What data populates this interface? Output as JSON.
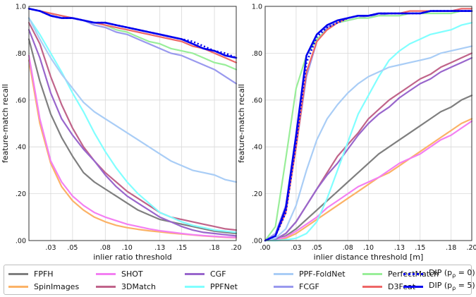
{
  "chart_data": [
    {
      "type": "line",
      "xlabel": "inlier ratio threshold",
      "ylabel": "feature-match recall",
      "xlim": [
        0.01,
        0.2
      ],
      "ylim": [
        0.0,
        1.0
      ],
      "xticks": [
        0.03,
        0.05,
        0.08,
        0.1,
        0.13,
        0.15,
        0.18,
        0.2
      ],
      "xtick_labels": [
        ".03",
        ".05",
        ".08",
        ".10",
        ".13",
        ".15",
        ".18",
        ".20"
      ],
      "yticks": [
        0.0,
        0.2,
        0.4,
        0.6,
        0.8,
        1.0
      ],
      "ytick_labels": [
        ".00",
        ".20",
        ".40",
        ".60",
        ".80",
        "1.0"
      ],
      "grid": true,
      "x": [
        0.01,
        0.02,
        0.03,
        0.04,
        0.05,
        0.06,
        0.07,
        0.08,
        0.09,
        0.1,
        0.11,
        0.12,
        0.13,
        0.14,
        0.15,
        0.16,
        0.17,
        0.18,
        0.19,
        0.2
      ],
      "series": [
        {
          "name": "FPFH",
          "values": [
            0.86,
            0.68,
            0.54,
            0.44,
            0.36,
            0.29,
            0.25,
            0.22,
            0.19,
            0.16,
            0.13,
            0.11,
            0.09,
            0.08,
            0.07,
            0.06,
            0.05,
            0.04,
            0.035,
            0.03
          ]
        },
        {
          "name": "SpinImages",
          "values": [
            0.77,
            0.5,
            0.33,
            0.23,
            0.17,
            0.13,
            0.1,
            0.08,
            0.065,
            0.055,
            0.048,
            0.042,
            0.037,
            0.032,
            0.028,
            0.024,
            0.02,
            0.017,
            0.014,
            0.012
          ]
        },
        {
          "name": "SHOT",
          "values": [
            0.79,
            0.52,
            0.34,
            0.25,
            0.19,
            0.15,
            0.12,
            0.1,
            0.085,
            0.07,
            0.06,
            0.05,
            0.042,
            0.036,
            0.03,
            0.025,
            0.021,
            0.018,
            0.015,
            0.013
          ]
        },
        {
          "name": "3DMatch",
          "values": [
            0.93,
            0.84,
            0.7,
            0.58,
            0.48,
            0.4,
            0.34,
            0.29,
            0.25,
            0.21,
            0.18,
            0.15,
            0.12,
            0.1,
            0.09,
            0.08,
            0.07,
            0.06,
            0.05,
            0.045
          ]
        },
        {
          "name": "CGF",
          "values": [
            0.9,
            0.78,
            0.63,
            0.52,
            0.45,
            0.39,
            0.34,
            0.28,
            0.23,
            0.19,
            0.16,
            0.13,
            0.1,
            0.08,
            0.06,
            0.045,
            0.035,
            0.03,
            0.025,
            0.02
          ]
        },
        {
          "name": "PPFNet",
          "values": [
            0.95,
            0.88,
            0.8,
            0.72,
            0.63,
            0.55,
            0.46,
            0.38,
            0.31,
            0.25,
            0.2,
            0.16,
            0.12,
            0.1,
            0.08,
            0.065,
            0.055,
            0.045,
            0.04,
            0.035
          ]
        },
        {
          "name": "PPF-FoldNet",
          "values": [
            0.95,
            0.86,
            0.78,
            0.71,
            0.65,
            0.59,
            0.55,
            0.52,
            0.49,
            0.46,
            0.43,
            0.4,
            0.37,
            0.34,
            0.32,
            0.3,
            0.29,
            0.28,
            0.26,
            0.25
          ]
        },
        {
          "name": "FCGF",
          "values": [
            0.99,
            0.98,
            0.96,
            0.95,
            0.95,
            0.94,
            0.92,
            0.91,
            0.89,
            0.88,
            0.86,
            0.84,
            0.82,
            0.8,
            0.79,
            0.77,
            0.75,
            0.73,
            0.7,
            0.67
          ]
        },
        {
          "name": "PerfectMatch",
          "values": [
            0.99,
            0.98,
            0.97,
            0.96,
            0.95,
            0.94,
            0.93,
            0.92,
            0.9,
            0.89,
            0.87,
            0.85,
            0.84,
            0.82,
            0.81,
            0.8,
            0.78,
            0.76,
            0.75,
            0.73
          ]
        },
        {
          "name": "D3Feat",
          "values": [
            0.99,
            0.98,
            0.97,
            0.96,
            0.95,
            0.94,
            0.93,
            0.92,
            0.91,
            0.9,
            0.89,
            0.88,
            0.87,
            0.86,
            0.85,
            0.83,
            0.82,
            0.8,
            0.78,
            0.76
          ]
        },
        {
          "name": "DIP (p_ρ = 0)",
          "values": [
            0.99,
            0.98,
            0.96,
            0.95,
            0.95,
            0.94,
            0.93,
            0.93,
            0.92,
            0.91,
            0.9,
            0.89,
            0.88,
            0.87,
            0.86,
            0.85,
            0.83,
            0.81,
            0.8,
            0.78
          ]
        },
        {
          "name": "DIP (p_ρ = 5)",
          "values": [
            0.99,
            0.98,
            0.96,
            0.95,
            0.95,
            0.94,
            0.93,
            0.93,
            0.92,
            0.91,
            0.9,
            0.89,
            0.88,
            0.87,
            0.86,
            0.84,
            0.82,
            0.81,
            0.79,
            0.78
          ]
        }
      ]
    },
    {
      "type": "line",
      "xlabel": "inlier distance threshold [m]",
      "ylabel": "feature-match recall",
      "xlim": [
        0.0,
        0.2
      ],
      "ylim": [
        0.0,
        1.0
      ],
      "xticks": [
        0.0,
        0.03,
        0.05,
        0.08,
        0.1,
        0.13,
        0.15,
        0.18,
        0.2
      ],
      "xtick_labels": [
        ".00",
        ".03",
        ".05",
        ".08",
        ".10",
        ".13",
        ".15",
        ".18",
        ".20"
      ],
      "yticks": [
        0.0,
        0.2,
        0.4,
        0.6,
        0.8,
        1.0
      ],
      "ytick_labels": [
        ".00",
        ".20",
        ".40",
        ".60",
        ".80",
        "1.0"
      ],
      "grid": true,
      "x": [
        0.0,
        0.01,
        0.02,
        0.03,
        0.04,
        0.05,
        0.06,
        0.07,
        0.08,
        0.09,
        0.1,
        0.11,
        0.12,
        0.13,
        0.14,
        0.15,
        0.16,
        0.17,
        0.18,
        0.19,
        0.2
      ],
      "series": [
        {
          "name": "FPFH",
          "values": [
            0.0,
            0.005,
            0.02,
            0.05,
            0.09,
            0.13,
            0.17,
            0.21,
            0.25,
            0.29,
            0.33,
            0.37,
            0.4,
            0.43,
            0.46,
            0.49,
            0.52,
            0.55,
            0.57,
            0.6,
            0.62
          ]
        },
        {
          "name": "SpinImages",
          "values": [
            0.0,
            0.003,
            0.01,
            0.03,
            0.06,
            0.09,
            0.12,
            0.15,
            0.18,
            0.21,
            0.24,
            0.27,
            0.29,
            0.32,
            0.35,
            0.38,
            0.41,
            0.44,
            0.47,
            0.5,
            0.52
          ]
        },
        {
          "name": "SHOT",
          "values": [
            0.0,
            0.004,
            0.015,
            0.04,
            0.07,
            0.1,
            0.14,
            0.17,
            0.2,
            0.23,
            0.25,
            0.27,
            0.3,
            0.33,
            0.35,
            0.37,
            0.4,
            0.43,
            0.45,
            0.48,
            0.51
          ]
        },
        {
          "name": "3DMatch",
          "values": [
            0.0,
            0.005,
            0.03,
            0.08,
            0.15,
            0.22,
            0.29,
            0.36,
            0.41,
            0.46,
            0.52,
            0.56,
            0.6,
            0.63,
            0.66,
            0.69,
            0.71,
            0.74,
            0.76,
            0.78,
            0.8
          ]
        },
        {
          "name": "CGF",
          "values": [
            0.0,
            0.005,
            0.03,
            0.08,
            0.15,
            0.22,
            0.28,
            0.33,
            0.39,
            0.45,
            0.5,
            0.54,
            0.57,
            0.61,
            0.64,
            0.67,
            0.69,
            0.72,
            0.74,
            0.76,
            0.78
          ]
        },
        {
          "name": "PPFNet",
          "values": [
            0.0,
            0.0,
            0.003,
            0.01,
            0.03,
            0.08,
            0.18,
            0.3,
            0.42,
            0.54,
            0.62,
            0.7,
            0.77,
            0.81,
            0.84,
            0.86,
            0.88,
            0.89,
            0.9,
            0.92,
            0.93
          ]
        },
        {
          "name": "PPF-FoldNet",
          "values": [
            0.0,
            0.01,
            0.05,
            0.15,
            0.3,
            0.43,
            0.52,
            0.58,
            0.63,
            0.67,
            0.7,
            0.72,
            0.74,
            0.75,
            0.76,
            0.77,
            0.78,
            0.8,
            0.81,
            0.82,
            0.83
          ]
        },
        {
          "name": "FCGF",
          "values": [
            0.0,
            0.03,
            0.15,
            0.4,
            0.7,
            0.85,
            0.91,
            0.93,
            0.94,
            0.95,
            0.96,
            0.96,
            0.97,
            0.97,
            0.97,
            0.97,
            0.98,
            0.98,
            0.98,
            0.98,
            0.98
          ]
        },
        {
          "name": "PerfectMatch",
          "values": [
            0.0,
            0.06,
            0.35,
            0.65,
            0.79,
            0.86,
            0.9,
            0.93,
            0.94,
            0.95,
            0.95,
            0.96,
            0.96,
            0.96,
            0.97,
            0.97,
            0.97,
            0.97,
            0.97,
            0.98,
            0.98
          ]
        },
        {
          "name": "D3Feat",
          "values": [
            0.0,
            0.02,
            0.12,
            0.4,
            0.72,
            0.85,
            0.9,
            0.93,
            0.95,
            0.96,
            0.96,
            0.97,
            0.97,
            0.97,
            0.98,
            0.98,
            0.98,
            0.98,
            0.98,
            0.99,
            0.99
          ]
        },
        {
          "name": "DIP (p_ρ = 0)",
          "values": [
            0.0,
            0.02,
            0.12,
            0.42,
            0.76,
            0.87,
            0.91,
            0.93,
            0.95,
            0.96,
            0.96,
            0.97,
            0.97,
            0.97,
            0.97,
            0.97,
            0.98,
            0.98,
            0.98,
            0.98,
            0.98
          ]
        },
        {
          "name": "DIP (p_ρ = 5)",
          "values": [
            0.0,
            0.02,
            0.14,
            0.45,
            0.79,
            0.88,
            0.92,
            0.94,
            0.95,
            0.96,
            0.96,
            0.97,
            0.97,
            0.97,
            0.97,
            0.97,
            0.98,
            0.98,
            0.98,
            0.98,
            0.98
          ]
        }
      ]
    }
  ],
  "legend": {
    "placement": "bottom",
    "items": [
      {
        "label": "FPFH",
        "color": "#7f7f7f",
        "style": "solid"
      },
      {
        "label": "SpinImages",
        "color": "#fbb266",
        "style": "solid"
      },
      {
        "label": "SHOT",
        "color": "#f37ff2",
        "style": "solid"
      },
      {
        "label": "3DMatch",
        "color": "#c0648a",
        "style": "solid"
      },
      {
        "label": "CGF",
        "color": "#9966cc",
        "style": "solid"
      },
      {
        "label": "PPFNet",
        "color": "#80ffff",
        "style": "solid"
      },
      {
        "label": "PPF-FoldNet",
        "color": "#a9cdf6",
        "style": "solid"
      },
      {
        "label": "FCGF",
        "color": "#9999ee",
        "style": "solid"
      },
      {
        "label": "PerfectMatch",
        "color": "#99ee99",
        "style": "solid"
      },
      {
        "label": "D3Feat",
        "color": "#ee6666",
        "style": "solid"
      },
      {
        "label": "DIP (p",
        "label_sub": "ρ",
        "label_tail": " = 0)",
        "color": "#0000ee",
        "style": "dotted"
      },
      {
        "label": "DIP (p",
        "label_sub": "ρ",
        "label_tail": " = 5)",
        "color": "#0000ee",
        "style": "solid"
      }
    ]
  }
}
